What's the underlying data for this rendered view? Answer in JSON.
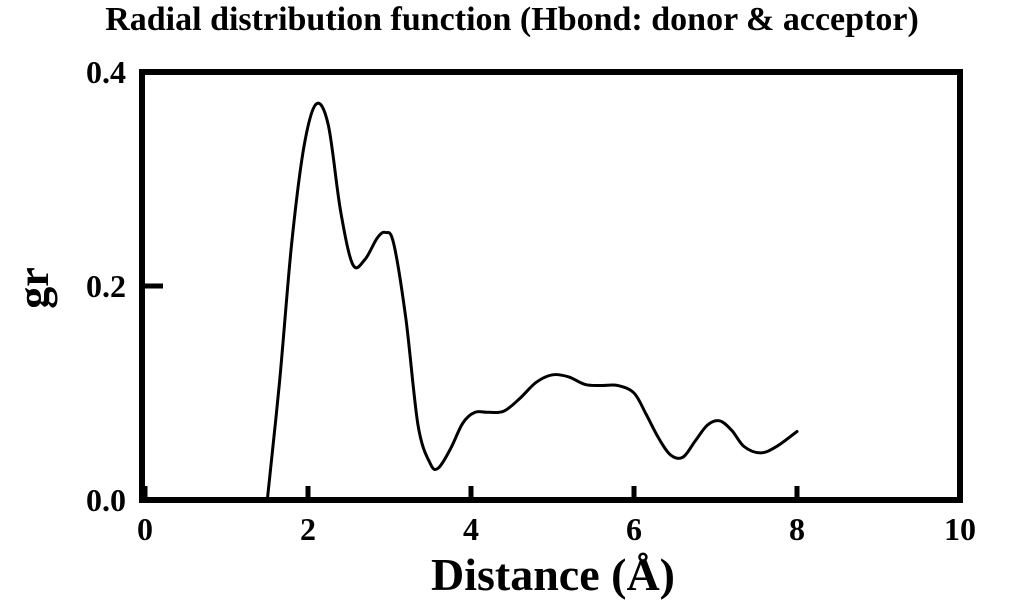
{
  "chart_data": {
    "type": "line",
    "title": "Radial distribution function (Hbond: donor & acceptor)",
    "xlabel": "Distance (Å)",
    "ylabel": "gr",
    "xlim": [
      0,
      10
    ],
    "ylim": [
      0,
      0.4
    ],
    "x_ticks": [
      0,
      2,
      4,
      6,
      8,
      10
    ],
    "x_tick_labels": [
      "0",
      "2",
      "4",
      "6",
      "8",
      "10"
    ],
    "y_ticks": [
      0.0,
      0.2,
      0.4
    ],
    "y_tick_labels": [
      "0.0",
      "0.2",
      "0.4"
    ],
    "grid": false,
    "line_color": "#000000",
    "series": [
      {
        "x": [
          1.5,
          1.65,
          1.8,
          1.95,
          2.1,
          2.25,
          2.4,
          2.55,
          2.7,
          2.85,
          2.95,
          3.05,
          3.2,
          3.35,
          3.5,
          3.6,
          3.75,
          3.9,
          4.05,
          4.2,
          4.4,
          4.6,
          4.8,
          5.0,
          5.2,
          5.4,
          5.6,
          5.8,
          6.0,
          6.15,
          6.3,
          6.45,
          6.6,
          6.75,
          6.9,
          7.05,
          7.2,
          7.35,
          7.55,
          7.75,
          8.0
        ],
        "y": [
          0.0,
          0.11,
          0.24,
          0.33,
          0.37,
          0.35,
          0.27,
          0.22,
          0.225,
          0.245,
          0.25,
          0.24,
          0.17,
          0.07,
          0.034,
          0.03,
          0.048,
          0.072,
          0.082,
          0.082,
          0.083,
          0.095,
          0.11,
          0.117,
          0.115,
          0.108,
          0.107,
          0.107,
          0.1,
          0.08,
          0.058,
          0.042,
          0.04,
          0.055,
          0.07,
          0.074,
          0.065,
          0.05,
          0.044,
          0.05,
          0.064
        ]
      }
    ]
  }
}
